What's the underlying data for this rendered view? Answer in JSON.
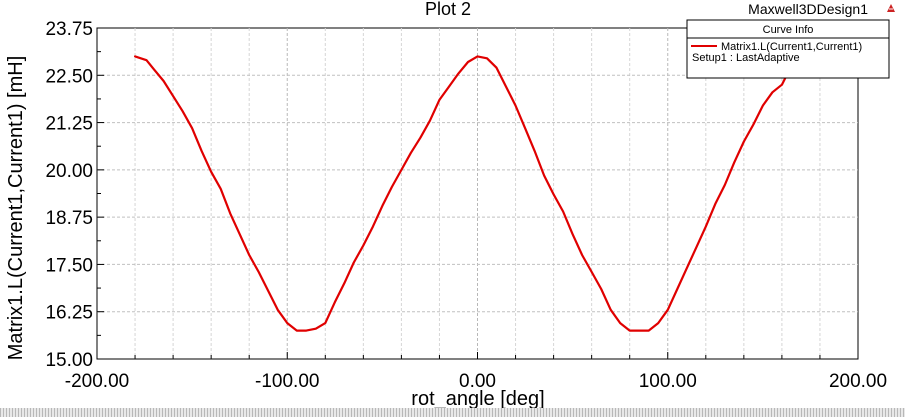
{
  "chart_data": {
    "type": "line",
    "title": "Plot 2",
    "design_name": "Maxwell3DDesign1",
    "xlabel": "rot_angle [deg]",
    "ylabel": "Matrix1.L(Current1,Current1) [mH]",
    "xlim": [
      -200,
      200
    ],
    "ylim": [
      15.0,
      23.75
    ],
    "x_ticks": [
      "-200.00",
      "-100.00",
      "0.00",
      "100.00",
      "200.00"
    ],
    "y_ticks": [
      "15.00",
      "16.25",
      "17.50",
      "18.75",
      "20.00",
      "21.25",
      "22.50",
      "23.75"
    ],
    "grid": true,
    "legend": {
      "title": "Curve Info",
      "placement": "top-right",
      "entries": [
        "Matrix1.L(Current1,Current1)"
      ],
      "subtitle": "Setup1 : LastAdaptive"
    },
    "series": [
      {
        "name": "Matrix1.L(Current1,Current1)",
        "color": "#e00000",
        "x": [
          -180,
          -177,
          -174,
          -170,
          -165,
          -160,
          -155,
          -150,
          -145,
          -140,
          -135,
          -130,
          -125,
          -120,
          -115,
          -110,
          -105,
          -100,
          -95,
          -90,
          -85,
          -80,
          -75,
          -70,
          -65,
          -60,
          -55,
          -50,
          -45,
          -40,
          -35,
          -30,
          -25,
          -20,
          -15,
          -10,
          -5,
          0,
          5,
          10,
          15,
          20,
          25,
          30,
          35,
          40,
          45,
          50,
          55,
          60,
          65,
          70,
          75,
          80,
          85,
          90,
          95,
          100,
          105,
          110,
          115,
          120,
          125,
          130,
          135,
          140,
          145,
          150,
          155,
          160,
          165,
          170
        ],
        "y": [
          23.0,
          22.95,
          22.9,
          22.65,
          22.35,
          21.95,
          21.55,
          21.1,
          20.5,
          19.95,
          19.5,
          18.85,
          18.3,
          17.75,
          17.3,
          16.8,
          16.3,
          15.95,
          15.75,
          15.75,
          15.8,
          15.95,
          16.5,
          17.0,
          17.55,
          18.0,
          18.5,
          19.05,
          19.55,
          20.0,
          20.45,
          20.85,
          21.3,
          21.85,
          22.2,
          22.55,
          22.85,
          23.0,
          22.95,
          22.7,
          22.2,
          21.7,
          21.1,
          20.5,
          19.85,
          19.35,
          18.9,
          18.3,
          17.75,
          17.3,
          16.85,
          16.3,
          15.95,
          15.75,
          15.75,
          15.75,
          15.95,
          16.3,
          16.85,
          17.4,
          17.95,
          18.5,
          19.1,
          19.6,
          20.2,
          20.75,
          21.2,
          21.7,
          22.05,
          22.25,
          22.75,
          23.05
        ]
      }
    ]
  }
}
